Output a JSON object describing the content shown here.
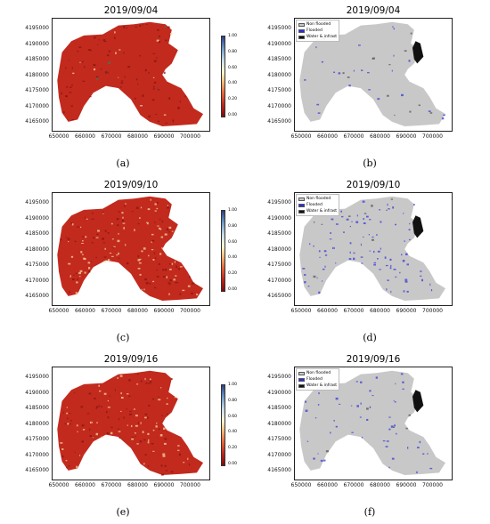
{
  "panels": [
    {
      "id": "a",
      "title": "2019/09/04",
      "type": "index"
    },
    {
      "id": "b",
      "title": "2019/09/04",
      "type": "class"
    },
    {
      "id": "c",
      "title": "2019/09/10",
      "type": "index"
    },
    {
      "id": "d",
      "title": "2019/09/10",
      "type": "class"
    },
    {
      "id": "e",
      "title": "2019/09/16",
      "type": "index"
    },
    {
      "id": "f",
      "title": "2019/09/16",
      "type": "class"
    }
  ],
  "captions": [
    "(a)",
    "(b)",
    "(c)",
    "(d)",
    "(e)",
    "(f)"
  ],
  "y_ticks": [
    "4195000",
    "4190000",
    "4185000",
    "4180000",
    "4175000",
    "4170000",
    "4165000"
  ],
  "x_ticks": [
    "650000",
    "660000",
    "670000",
    "680000",
    "690000",
    "700000"
  ],
  "colorbar_ticks": [
    "1.00",
    "0.80",
    "0.60",
    "0.40",
    "0.20",
    "0.00"
  ],
  "legend": [
    {
      "label": "Non flooded",
      "color": "#c8c8c8"
    },
    {
      "label": "Flooded",
      "color": "#2a2ae0"
    },
    {
      "label": "Water & infrast",
      "color": "#111111"
    }
  ],
  "colors": {
    "index_dry": "#c22a1e",
    "index_dark": "#8a1410",
    "index_wet": "#f6d9a0",
    "land_gray": "#c8c8c8",
    "flood_blue": "#3b3bdc",
    "water_black": "#111111"
  },
  "chart_data": [
    {
      "type": "heatmap",
      "title": "2019/09/04",
      "xlim": [
        645000,
        705000
      ],
      "ylim": [
        4162000,
        4199000
      ],
      "colorbar_range": [
        0.0,
        1.0
      ],
      "x_ticks": [
        650000,
        660000,
        670000,
        680000,
        690000,
        700000
      ],
      "y_ticks": [
        4165000,
        4170000,
        4175000,
        4180000,
        4185000,
        4190000,
        4195000
      ]
    },
    {
      "type": "heatmap",
      "title": "2019/09/04",
      "xlim": [
        645000,
        705000
      ],
      "ylim": [
        4162000,
        4199000
      ],
      "legend": [
        "Non flooded",
        "Flooded",
        "Water & infrast"
      ]
    },
    {
      "type": "heatmap",
      "title": "2019/09/10",
      "xlim": [
        645000,
        705000
      ],
      "ylim": [
        4162000,
        4199000
      ],
      "colorbar_range": [
        0.0,
        1.0
      ]
    },
    {
      "type": "heatmap",
      "title": "2019/09/10",
      "xlim": [
        645000,
        705000
      ],
      "ylim": [
        4162000,
        4199000
      ],
      "legend": [
        "Non flooded",
        "Flooded",
        "Water & infrast"
      ]
    },
    {
      "type": "heatmap",
      "title": "2019/09/16",
      "xlim": [
        645000,
        705000
      ],
      "ylim": [
        4162000,
        4199000
      ],
      "colorbar_range": [
        0.0,
        1.0
      ]
    },
    {
      "type": "heatmap",
      "title": "2019/09/16",
      "xlim": [
        645000,
        705000
      ],
      "ylim": [
        4162000,
        4199000
      ],
      "legend": [
        "Non flooded",
        "Flooded",
        "Water & infrast"
      ]
    }
  ]
}
